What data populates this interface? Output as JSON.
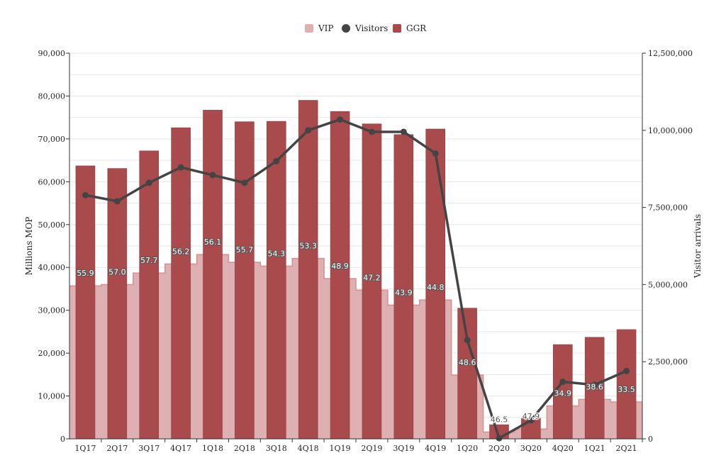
{
  "chart_data": {
    "type": "bar",
    "categories": [
      "1Q17",
      "2Q17",
      "3Q17",
      "4Q17",
      "1Q18",
      "2Q18",
      "3Q18",
      "4Q18",
      "1Q19",
      "2Q19",
      "3Q19",
      "4Q19",
      "1Q20",
      "2Q20",
      "3Q20",
      "4Q20",
      "1Q21",
      "2Q21"
    ],
    "legend": {
      "placement": "top-center",
      "items": [
        "VIP",
        "Visitors",
        "GGR"
      ]
    },
    "colors": {
      "vip": "#deb0b2",
      "vip_edge": "#d58f93",
      "ggr": "#a94b4d",
      "visitors": "#444444",
      "grid": "#e6e6e6",
      "axis": "#333333"
    },
    "series": [
      {
        "name": "GGR",
        "type": "bar",
        "axis": "left",
        "values": [
          63700,
          63100,
          67200,
          72600,
          76700,
          74000,
          74100,
          79000,
          76400,
          73500,
          71000,
          72300,
          30500,
          3300,
          4800,
          22000,
          23700,
          25500
        ]
      },
      {
        "name": "VIP",
        "type": "step-area",
        "axis": "left",
        "values": [
          35700,
          36000,
          38700,
          40800,
          43000,
          41200,
          40300,
          42100,
          37400,
          34700,
          31200,
          32400,
          14900,
          1600,
          2300,
          7700,
          9200,
          8600
        ],
        "labels": [
          "55.9",
          "57.0",
          "57.7",
          "56.2",
          "56.1",
          "55.7",
          "54.3",
          "53.3",
          "48.9",
          "47.2",
          "43.9",
          "44.8",
          "48.6",
          "46.5",
          "47.9",
          "34.9",
          "38.6",
          "33.5"
        ]
      },
      {
        "name": "Visitors",
        "type": "line",
        "axis": "right",
        "values": [
          7900000,
          7700000,
          8300000,
          8800000,
          8550000,
          8300000,
          9000000,
          10000000,
          10350000,
          9950000,
          9950000,
          9250000,
          3200000,
          20000,
          600000,
          1850000,
          1750000,
          2200000
        ]
      }
    ],
    "y_left": {
      "label": "Millions MOP",
      "min": 0,
      "max": 90000,
      "ticks": [
        "0",
        "10,000",
        "20,000",
        "30,000",
        "40,000",
        "50,000",
        "60,000",
        "70,000",
        "80,000",
        "90,000"
      ]
    },
    "y_right": {
      "label": "Visitor arrivals",
      "min": 0,
      "max": 12500000,
      "ticks": [
        "0",
        "2,500,000",
        "5,000,000",
        "7,500,000",
        "10,000,000",
        "12,500,000"
      ]
    },
    "grid": true
  }
}
